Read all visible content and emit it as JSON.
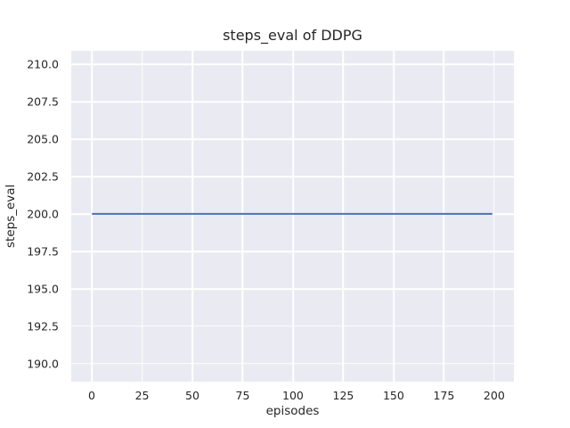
{
  "figure": {
    "background": "#ffffff",
    "text_color": "#262626"
  },
  "chart_data": {
    "type": "line",
    "title": "steps_eval of DDPG",
    "xlabel": "episodes",
    "ylabel": "steps_eval",
    "xlim": [
      -10.2,
      209.8
    ],
    "ylim": [
      188.8,
      210.9
    ],
    "xticks": [
      0,
      25,
      50,
      75,
      100,
      125,
      150,
      175,
      200
    ],
    "ytick_labels": [
      "190.0",
      "192.5",
      "195.0",
      "197.5",
      "200.0",
      "202.5",
      "205.0",
      "207.5",
      "210.0"
    ],
    "grid": true,
    "legend": false,
    "plot_background": "#eaeaf2",
    "grid_color": "#ffffff",
    "series": [
      {
        "name": "steps_eval",
        "color": "#4c72b0",
        "x": [
          0,
          199
        ],
        "y": [
          200,
          200
        ]
      }
    ]
  }
}
